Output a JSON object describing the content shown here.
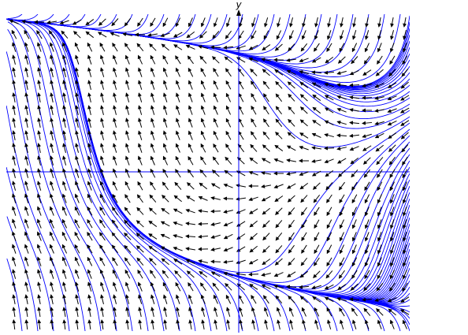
{
  "chart_data": {
    "type": "streamplot",
    "ylabel": "y",
    "line_color": "#0000ff",
    "arrow_color": "#000000",
    "axis_color": "#0000ff"
  }
}
